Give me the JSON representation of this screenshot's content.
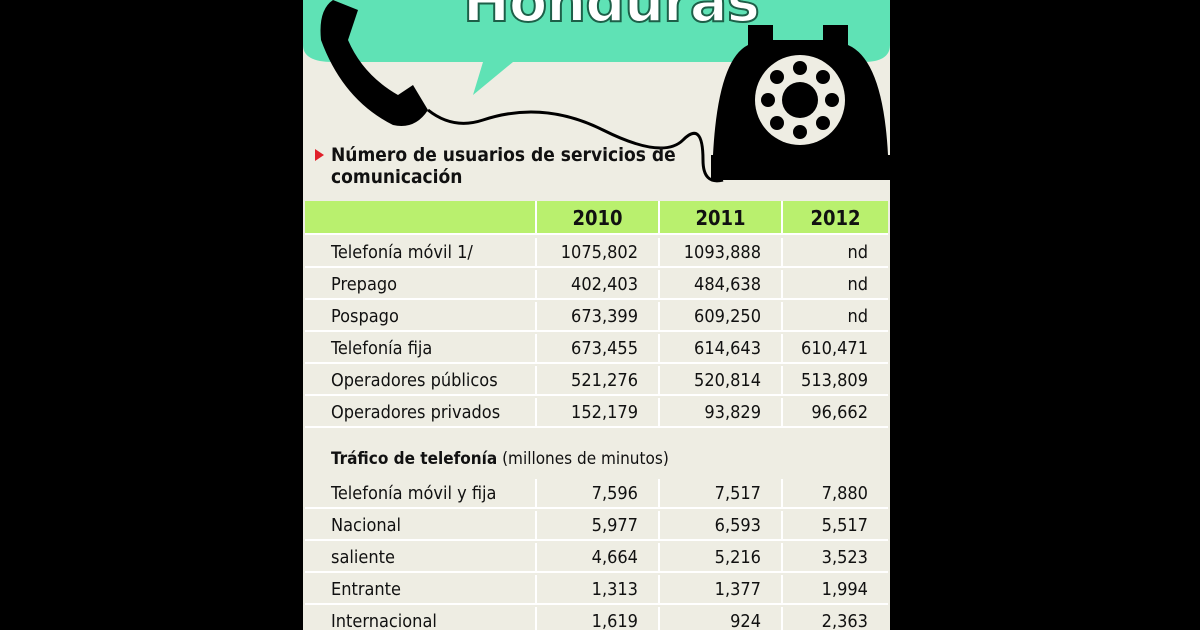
{
  "title": "Honduras",
  "subtitle": "Número de usuarios de servicios de comunicación",
  "table": {
    "header": [
      "2010",
      "2011",
      "2012"
    ],
    "rows": [
      [
        "Telefonía móvil 1/",
        "1075,802",
        "1093,888",
        "nd"
      ],
      [
        "Prepago",
        "402,403",
        "484,638",
        "nd"
      ],
      [
        "Pospago",
        "673,399",
        "609,250",
        "nd"
      ],
      [
        "Telefonía fija",
        "673,455",
        "614,643",
        "610,471"
      ],
      [
        "Operadores públicos",
        "521,276",
        "520,814",
        "513,809"
      ],
      [
        "Operadores privados",
        "152,179",
        "93,829",
        "96,662"
      ]
    ]
  },
  "section": {
    "title": "Tráfico de telefonía",
    "note": "(millones de minutos)",
    "rows": [
      [
        "Telefonía móvil y fija",
        "7,596",
        "7,517",
        "7,880"
      ],
      [
        "Nacional",
        "5,977",
        "6,593",
        "5,517"
      ],
      [
        "saliente",
        "4,664",
        "5,216",
        "3,523"
      ],
      [
        "Entrante",
        "1,313",
        "1,377",
        "1,994"
      ],
      [
        "Internacional",
        "1,619",
        "924",
        "2,363"
      ]
    ]
  }
}
